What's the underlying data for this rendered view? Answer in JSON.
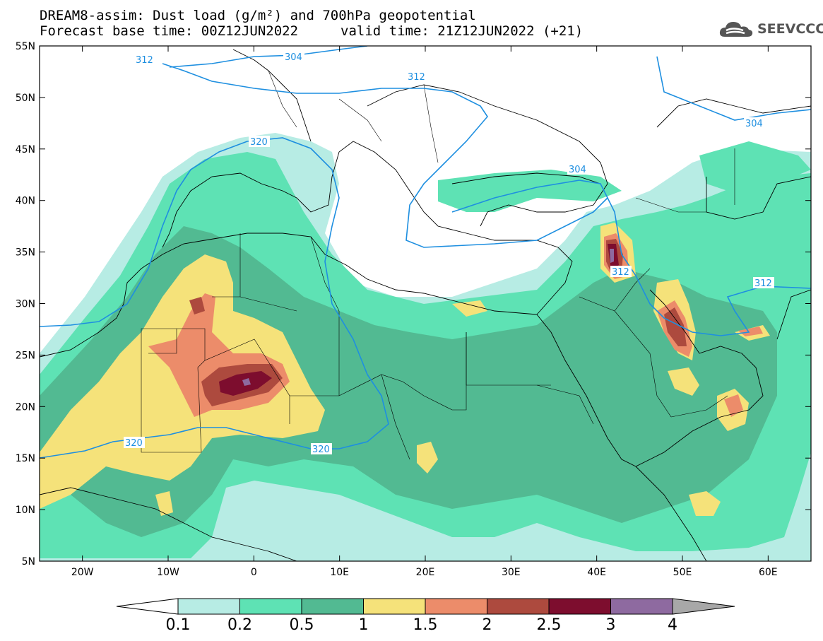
{
  "header": {
    "title_line1": "DREAM8-assim: Dust load (g/m²) and 700hPa geopotential",
    "title_line2": "Forecast base time: 00Z12JUN2022",
    "valid_time": "valid time: 21Z12JUN2022 (+21)",
    "logo_text": "SEEVCCC",
    "logo_icon": "cloud-icon"
  },
  "map": {
    "lon_range": [
      -25,
      65
    ],
    "lat_range": [
      5,
      55
    ],
    "lat_ticks": [
      "55N",
      "50N",
      "45N",
      "40N",
      "35N",
      "30N",
      "25N",
      "20N",
      "15N",
      "10N",
      "5N"
    ],
    "lon_ticks": [
      "20W",
      "10W",
      "0",
      "10E",
      "20E",
      "30E",
      "40E",
      "50E",
      "60E"
    ],
    "contour_color": "#1e8fe0",
    "contour_labels": [
      "312",
      "304",
      "312",
      "320",
      "304",
      "304",
      "312",
      "312",
      "320",
      "320"
    ]
  },
  "colorbar": {
    "levels": [
      "0.1",
      "0.2",
      "0.5",
      "1",
      "1.5",
      "2",
      "2.5",
      "3",
      "4"
    ],
    "colors": [
      "#ffffff",
      "#b7ece4",
      "#5ee2b4",
      "#52ba92",
      "#f5e27a",
      "#ec8c6a",
      "#ad4a3e",
      "#7d0d2e",
      "#8e6aa0",
      "#a8a8a8"
    ]
  }
}
